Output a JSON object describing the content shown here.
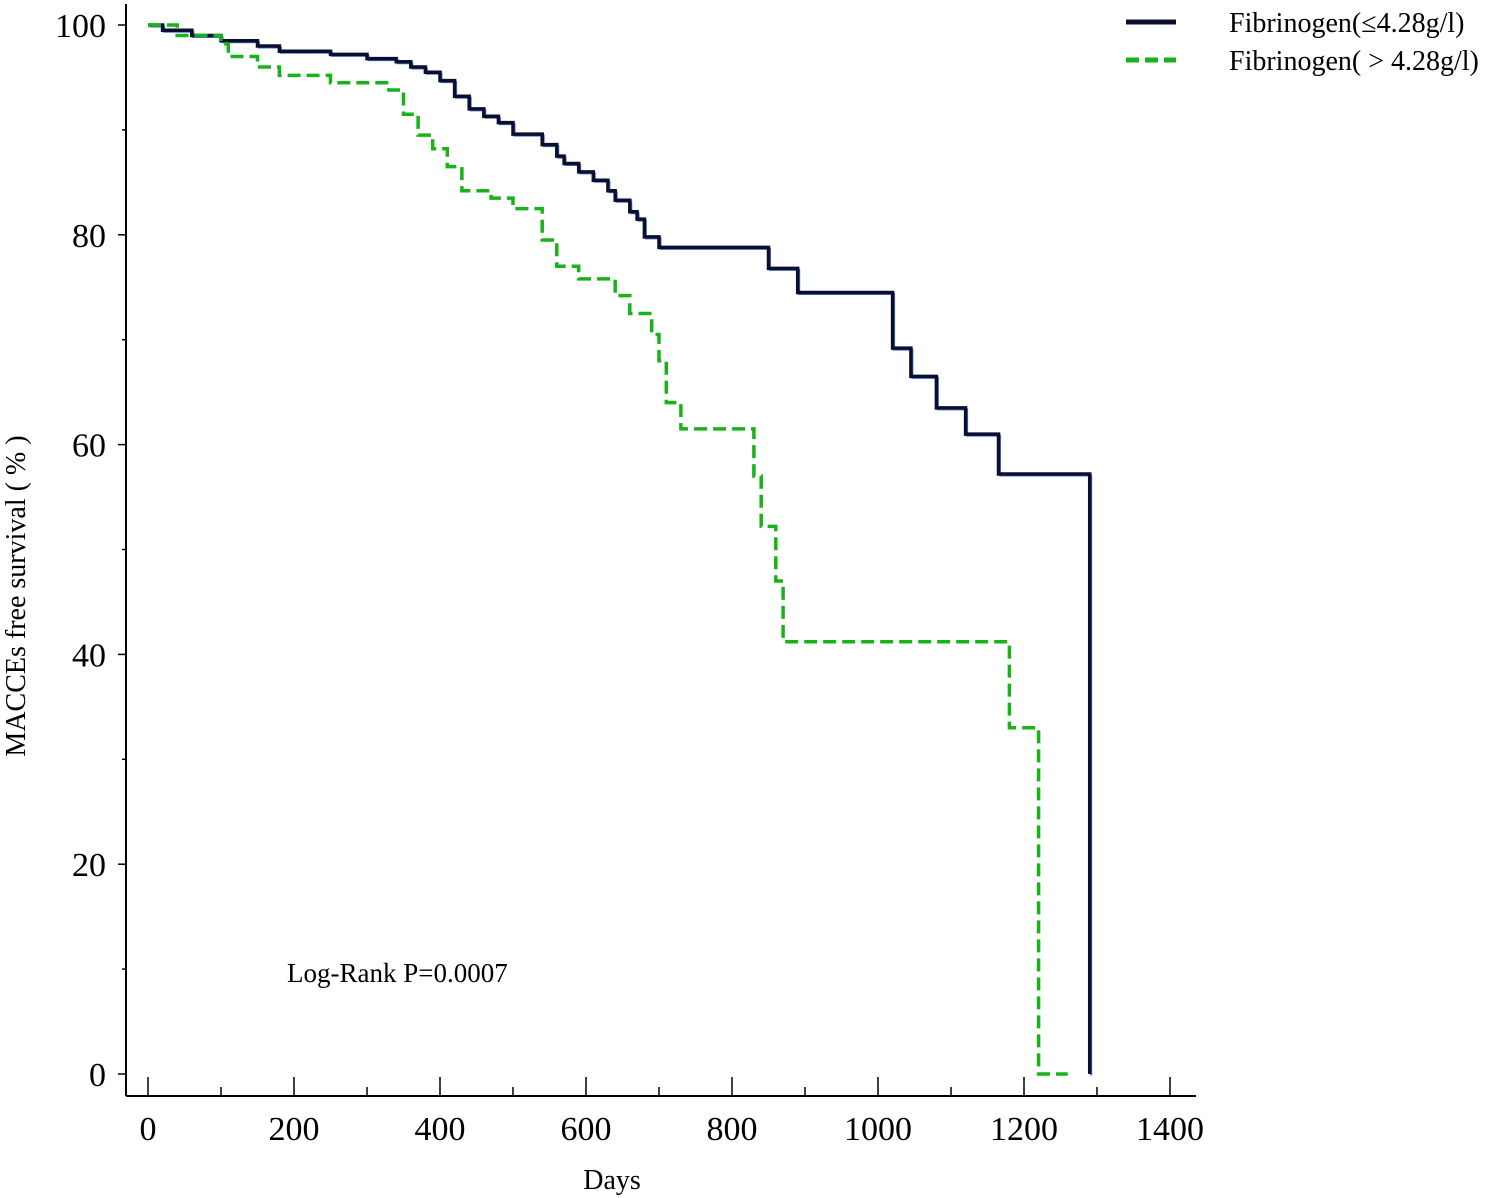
{
  "chart_data": {
    "type": "line",
    "step": true,
    "title": "",
    "xlabel": "Days",
    "ylabel": "MACCEs free survival ( % )",
    "xlim": [
      0,
      1400
    ],
    "ylim": [
      0,
      100
    ],
    "xticks": [
      0,
      200,
      400,
      600,
      800,
      1000,
      1200,
      1400
    ],
    "yticks": [
      0,
      20,
      40,
      60,
      80,
      100
    ],
    "x_tick_labels": [
      "0",
      "200",
      "400",
      "600",
      "800",
      "1000",
      "1200",
      "1400"
    ],
    "y_tick_labels": [
      "0",
      "20",
      "40",
      "60",
      "80",
      "100"
    ],
    "grid": false,
    "legend_position": "top-right",
    "annotation": "Log-Rank P=0.0007",
    "series": [
      {
        "name": "Fibrinogen(≤4.28g/l)",
        "color": "#0a0f2e",
        "style": "solid",
        "x": [
          0,
          20,
          60,
          100,
          150,
          180,
          250,
          300,
          340,
          360,
          380,
          400,
          420,
          440,
          460,
          480,
          500,
          540,
          560,
          570,
          590,
          610,
          630,
          640,
          660,
          670,
          680,
          700,
          850,
          890,
          1020,
          1045,
          1080,
          1120,
          1165,
          1290
        ],
        "y": [
          100,
          99.5,
          99,
          98.5,
          98,
          97.5,
          97.2,
          96.8,
          96.5,
          96,
          95.5,
          94.7,
          93.2,
          92,
          91.3,
          90.7,
          89.6,
          88.6,
          87.5,
          86.8,
          86,
          85.2,
          84.2,
          83.3,
          82.2,
          81.5,
          79.8,
          78.8,
          76.8,
          74.5,
          69.2,
          66.5,
          63.5,
          61,
          57.2,
          0
        ]
      },
      {
        "name": "Fibrinogen( > 4.28g/l)",
        "color": "#1ab21a",
        "style": "dashed",
        "x": [
          0,
          40,
          100,
          110,
          150,
          180,
          250,
          330,
          350,
          370,
          390,
          410,
          430,
          470,
          500,
          540,
          560,
          590,
          640,
          660,
          690,
          700,
          710,
          730,
          830,
          840,
          860,
          870,
          1180,
          1220,
          1260
        ],
        "y": [
          100,
          99,
          98.2,
          97,
          96,
          95.2,
          94.5,
          93.8,
          91.5,
          89.5,
          88.2,
          86.5,
          84.2,
          83.5,
          82.5,
          79.5,
          77,
          75.8,
          74.2,
          72.5,
          70.5,
          68,
          64,
          61.5,
          57,
          52.2,
          47,
          41.2,
          33,
          0,
          0
        ]
      }
    ]
  }
}
